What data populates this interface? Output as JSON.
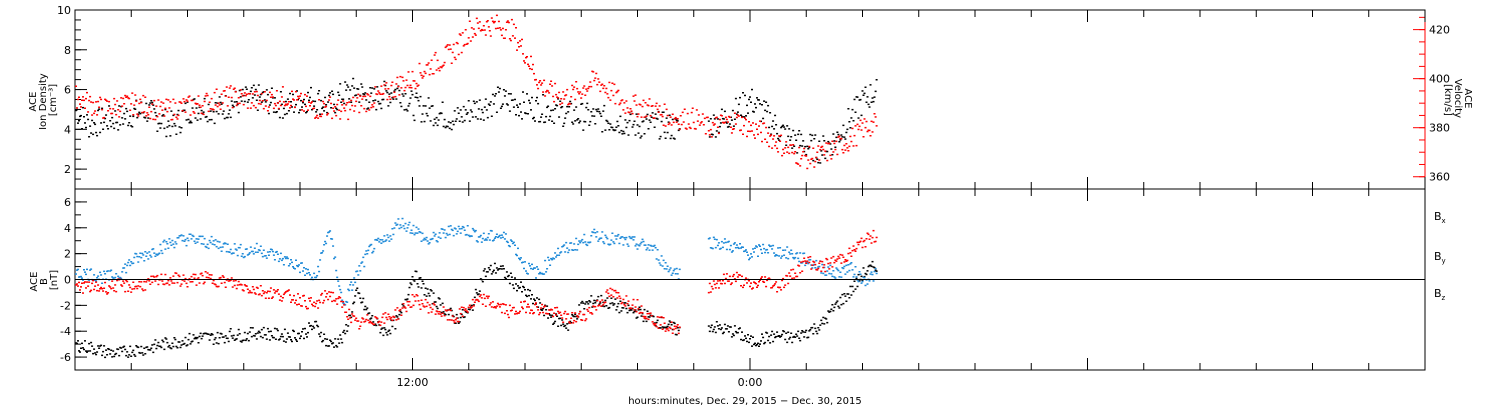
{
  "chart_data": [
    {
      "type": "scatter",
      "panel": "top",
      "ylabel_left": [
        "ACE",
        "Ion Density",
        "[cm⁻³]"
      ],
      "ylabel_right": [
        "ACE",
        "Velocity",
        "[km/s]"
      ],
      "ylim_left": [
        1,
        10
      ],
      "ylim_right": [
        355,
        428
      ],
      "left_ticks": [
        2,
        4,
        6,
        8,
        10
      ],
      "right_ticks": [
        360,
        380,
        400,
        420
      ],
      "colors": {
        "density": "#000000",
        "velocity": "#ff0000"
      },
      "series": [
        {
          "axis": "left",
          "x": [
            0.0,
            0.5,
            1.0,
            1.5,
            2.0,
            2.5,
            3.0,
            3.5,
            4.0,
            4.5,
            5.0,
            5.5,
            6.0,
            6.5,
            7.0,
            7.5,
            8.0,
            8.5,
            9.0,
            9.5,
            10.0,
            10.5,
            11.0,
            11.5,
            12.0,
            12.5,
            13.0,
            13.5,
            14.0,
            14.5,
            15.0,
            15.5,
            16.0,
            16.5,
            17.0,
            17.5,
            18.0,
            18.5,
            19.0,
            19.5,
            20.0,
            20.5,
            21.0,
            21.5,
            22.0,
            22.5,
            23.0,
            23.5,
            24.0,
            24.5,
            25.0,
            25.5,
            26.0,
            26.5,
            27.0,
            27.5,
            28.0,
            28.5
          ],
          "values": [
            5.0,
            4.2,
            4.5,
            4.6,
            4.8,
            5.0,
            4.5,
            4.2,
            5.0,
            5.2,
            5.0,
            5.3,
            5.5,
            5.6,
            5.4,
            5.2,
            5.5,
            5.6,
            5.2,
            5.8,
            6.0,
            5.5,
            5.8,
            6.0,
            5.2,
            5.0,
            4.8,
            4.5,
            5.0,
            5.2,
            5.5,
            5.4,
            5.2,
            5.1,
            5.0,
            4.8,
            4.7,
            4.6,
            4.5,
            4.4,
            4.2,
            4.3,
            4.2,
            4.0,
            null,
            4.2,
            4.5,
            5.0,
            5.5,
            4.8,
            4.0,
            3.5,
            3.2,
            3.0,
            3.5,
            4.5,
            5.5,
            6.0
          ]
        },
        {
          "axis": "right",
          "x": [
            0.0,
            0.5,
            1.0,
            1.5,
            2.0,
            2.5,
            3.0,
            3.5,
            4.0,
            4.5,
            5.0,
            5.5,
            6.0,
            6.5,
            7.0,
            7.5,
            8.0,
            8.5,
            9.0,
            9.5,
            10.0,
            10.5,
            11.0,
            11.5,
            12.0,
            12.5,
            13.0,
            13.5,
            14.0,
            14.5,
            15.0,
            15.5,
            16.0,
            16.5,
            17.0,
            17.5,
            18.0,
            18.5,
            19.0,
            19.5,
            20.0,
            20.5,
            21.0,
            21.5,
            22.0,
            22.5,
            23.0,
            23.5,
            24.0,
            24.5,
            25.0,
            25.5,
            26.0,
            26.5,
            27.0,
            27.5,
            28.0,
            28.5
          ],
          "values": [
            393,
            390,
            388,
            389,
            390,
            389,
            387,
            388,
            389,
            390,
            392,
            393,
            392,
            391,
            392,
            393,
            390,
            388,
            389,
            387,
            390,
            392,
            394,
            398,
            400,
            405,
            408,
            412,
            420,
            422,
            422,
            420,
            410,
            398,
            394,
            393,
            396,
            400,
            395,
            390,
            389,
            388,
            385,
            384,
            384,
            380,
            382,
            383,
            380,
            378,
            374,
            370,
            368,
            369,
            372,
            375,
            380,
            382
          ]
        }
      ]
    },
    {
      "type": "scatter",
      "panel": "bottom",
      "ylabel": [
        "ACE",
        "B",
        "[nT]"
      ],
      "ylim": [
        -7,
        7
      ],
      "yticks": [
        -6,
        -4,
        -2,
        0,
        2,
        4,
        6
      ],
      "xlim": [
        0,
        48
      ],
      "xticks_labels": [
        {
          "x": 12,
          "label": "12:00"
        },
        {
          "x": 24,
          "label": "0:00"
        }
      ],
      "xlabel": "hours:minutes, Dec. 29, 2015 − Dec. 30, 2015",
      "legend": [
        {
          "name": "B",
          "sub": "x",
          "color": "#000000"
        },
        {
          "name": "B",
          "sub": "y",
          "color": "#1f8ad8"
        },
        {
          "name": "B",
          "sub": "z",
          "color": "#ff0000"
        }
      ],
      "series": [
        {
          "name": "Bx",
          "x": [
            0.0,
            0.5,
            1.0,
            1.5,
            2.0,
            2.5,
            3.0,
            3.5,
            4.0,
            4.5,
            5.0,
            5.5,
            6.0,
            6.5,
            7.0,
            7.5,
            8.0,
            8.5,
            9.0,
            9.5,
            10.0,
            10.5,
            11.0,
            11.5,
            12.0,
            12.5,
            13.0,
            13.5,
            14.0,
            14.5,
            15.0,
            15.5,
            16.0,
            16.5,
            17.0,
            17.5,
            18.0,
            18.5,
            19.0,
            19.5,
            20.0,
            20.5,
            21.0,
            21.5,
            22.0,
            22.5,
            23.0,
            23.5,
            24.0,
            24.5,
            25.0,
            25.5,
            26.0,
            26.5,
            27.0,
            27.5,
            28.0,
            28.5
          ],
          "values": [
            -5.0,
            -5.2,
            -5.5,
            -5.7,
            -5.4,
            -5.3,
            -5.0,
            -4.8,
            -4.6,
            -4.4,
            -4.5,
            -4.2,
            -4.3,
            -4.0,
            -4.2,
            -4.3,
            -4.2,
            -3.5,
            -5.0,
            -4.5,
            -1.0,
            -3.0,
            -4.0,
            -3.0,
            0.5,
            -1.0,
            -2.0,
            -3.0,
            -2.5,
            0.5,
            1.0,
            0.0,
            -1.0,
            -2.0,
            -3.0,
            -3.5,
            -2.0,
            -1.5,
            -1.8,
            -2.2,
            -2.5,
            -3.0,
            -3.5,
            -4.0,
            null,
            -3.5,
            -3.8,
            -4.0,
            -4.8,
            -4.5,
            -4.3,
            -4.5,
            -4.0,
            -3.5,
            -2.0,
            -1.0,
            0.5,
            1.2
          ]
        },
        {
          "name": "By",
          "x": [
            0.0,
            0.5,
            1.0,
            1.5,
            2.0,
            2.5,
            3.0,
            3.5,
            4.0,
            4.5,
            5.0,
            5.5,
            6.0,
            6.5,
            7.0,
            7.5,
            8.0,
            8.5,
            9.0,
            9.5,
            10.0,
            10.5,
            11.0,
            11.5,
            12.0,
            12.5,
            13.0,
            13.5,
            14.0,
            14.5,
            15.0,
            15.5,
            16.0,
            16.5,
            17.0,
            17.5,
            18.0,
            18.5,
            19.0,
            19.5,
            20.0,
            20.5,
            21.0,
            21.5,
            22.0,
            22.5,
            23.0,
            23.5,
            24.0,
            24.5,
            25.0,
            25.5,
            26.0,
            26.5,
            27.0,
            27.5,
            28.0,
            28.5
          ],
          "values": [
            0.5,
            0.5,
            0.2,
            0.4,
            1.5,
            2.0,
            2.5,
            3.0,
            3.2,
            3.0,
            2.8,
            2.5,
            2.2,
            2.4,
            2.0,
            1.5,
            1.0,
            0.0,
            4.0,
            -2.0,
            0.5,
            2.5,
            3.0,
            4.5,
            4.0,
            3.0,
            3.5,
            4.0,
            3.8,
            3.2,
            3.5,
            3.0,
            1.0,
            0.5,
            2.0,
            2.5,
            3.0,
            3.5,
            3.2,
            3.0,
            2.8,
            2.5,
            1.0,
            0.5,
            null,
            3.0,
            2.8,
            2.5,
            2.0,
            2.5,
            2.2,
            2.0,
            1.5,
            1.0,
            0.5,
            1.0,
            0.0,
            0.5
          ]
        },
        {
          "name": "Bz",
          "x": [
            0.0,
            0.5,
            1.0,
            1.5,
            2.0,
            2.5,
            3.0,
            3.5,
            4.0,
            4.5,
            5.0,
            5.5,
            6.0,
            6.5,
            7.0,
            7.5,
            8.0,
            8.5,
            9.0,
            9.5,
            10.0,
            10.5,
            11.0,
            11.5,
            12.0,
            12.5,
            13.0,
            13.5,
            14.0,
            14.5,
            15.0,
            15.5,
            16.0,
            16.5,
            17.0,
            17.5,
            18.0,
            18.5,
            19.0,
            19.5,
            20.0,
            20.5,
            21.0,
            21.5,
            22.0,
            22.5,
            23.0,
            23.5,
            24.0,
            24.5,
            25.0,
            25.5,
            26.0,
            26.5,
            27.0,
            27.5,
            28.0,
            28.5
          ],
          "values": [
            -0.5,
            -0.5,
            -0.6,
            -0.4,
            -0.5,
            -0.3,
            0.0,
            0.1,
            -0.1,
            0.2,
            0.0,
            -0.2,
            -0.5,
            -0.8,
            -1.0,
            -1.2,
            -1.5,
            -2.0,
            -1.0,
            -2.0,
            -3.5,
            -3.0,
            -3.0,
            -2.5,
            -1.5,
            -2.0,
            -2.5,
            -3.0,
            -2.0,
            -1.5,
            -2.0,
            -2.5,
            -2.0,
            -2.2,
            -2.5,
            -3.0,
            -2.8,
            -2.0,
            -1.0,
            -1.5,
            -2.0,
            -3.0,
            -3.5,
            -4.0,
            null,
            -0.5,
            0.0,
            0.2,
            -0.5,
            0.0,
            -0.5,
            0.5,
            1.5,
            1.0,
            1.5,
            2.0,
            3.0,
            3.5
          ]
        }
      ]
    }
  ]
}
